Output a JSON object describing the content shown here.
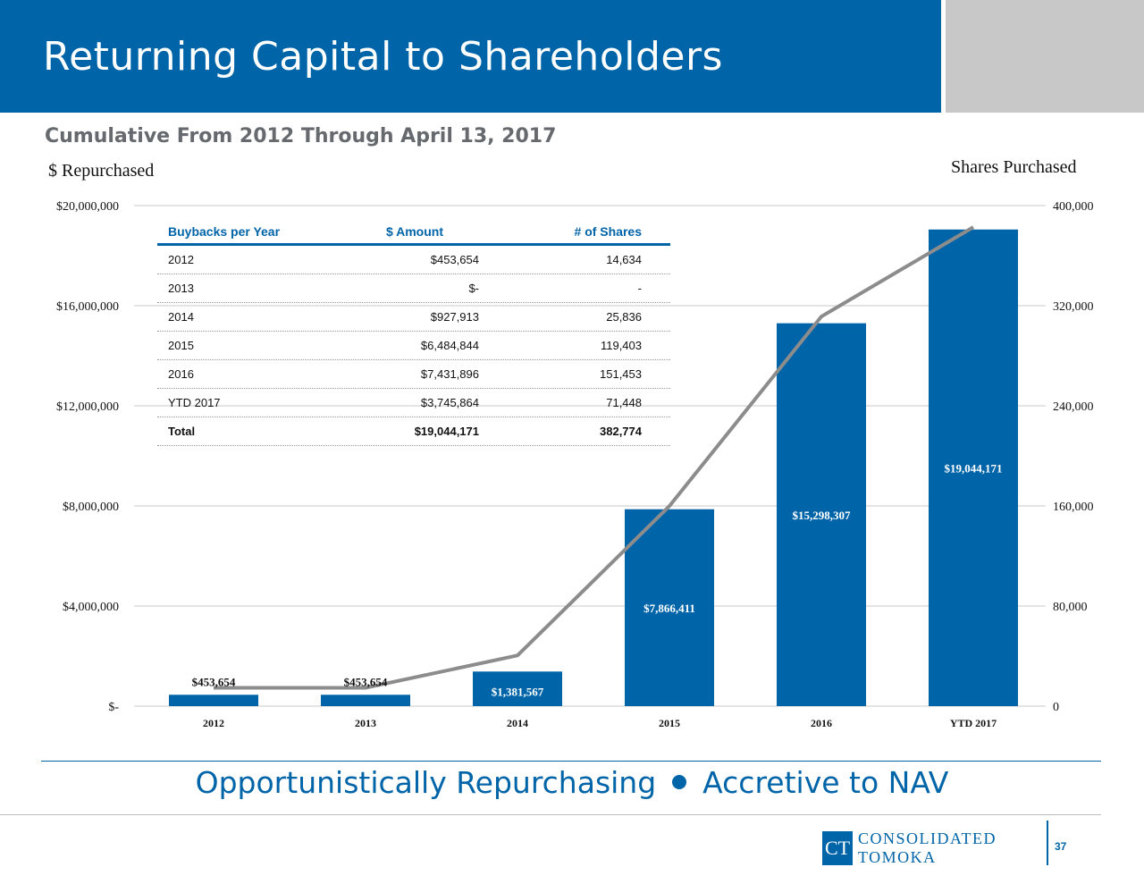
{
  "header": {
    "title": "Returning Capital to Shareholders",
    "subtitle": "Cumulative From 2012 Through April 13, 2017"
  },
  "colors": {
    "brand_blue": "#0064a8",
    "line_gray": "#8c8c8c",
    "header_gray": "#c8c8c8"
  },
  "chart_data": {
    "type": "bar",
    "secondary_type": "line",
    "categories": [
      "2012",
      "2013",
      "2014",
      "2015",
      "2016",
      "YTD 2017"
    ],
    "series": [
      {
        "axis": "left",
        "type": "bar",
        "values": [
          453654,
          453654,
          1381567,
          7866411,
          15298307,
          19044171
        ]
      },
      {
        "axis": "right",
        "type": "line",
        "values": [
          14634,
          14634,
          40470,
          159873,
          311326,
          382774
        ]
      }
    ],
    "bar_labels": [
      "$453,654",
      "$453,654",
      "$1,381,567",
      "$7,866,411",
      "$15,298,307",
      "$19,044,171"
    ],
    "ylabel": "$ Repurchased",
    "y2label": "Shares Purchased",
    "ylim": [
      0,
      20000000
    ],
    "y2lim": [
      0,
      400000
    ],
    "yticks": [
      0,
      4000000,
      8000000,
      12000000,
      16000000,
      20000000
    ],
    "ytick_labels": [
      "$-",
      "$4,000,000",
      "$8,000,000",
      "$12,000,000",
      "$16,000,000",
      "$20,000,000"
    ],
    "y2tick_labels": [
      "0",
      "80,000",
      "160,000",
      "240,000",
      "320,000",
      "400,000"
    ],
    "grid": true
  },
  "table": {
    "headers": [
      "Buybacks per Year",
      "$ Amount",
      "# of Shares"
    ],
    "rows": [
      [
        "2012",
        "$453,654",
        "14,634"
      ],
      [
        "2013",
        "$-",
        "-"
      ],
      [
        "2014",
        "$927,913",
        "25,836"
      ],
      [
        "2015",
        "$6,484,844",
        "119,403"
      ],
      [
        "2016",
        "$7,431,896",
        "151,453"
      ],
      [
        "YTD 2017",
        "$3,745,864",
        "71,448"
      ]
    ],
    "total": [
      "Total",
      "$19,044,171",
      "382,774"
    ]
  },
  "footer": {
    "tagline_left": "Opportunistically Repurchasing",
    "tagline_right": "Accretive to NAV",
    "logo_mark": "CT",
    "logo_line1": "CONSOLIDATED",
    "logo_line2": "TOMOKA",
    "page_number": "37"
  }
}
